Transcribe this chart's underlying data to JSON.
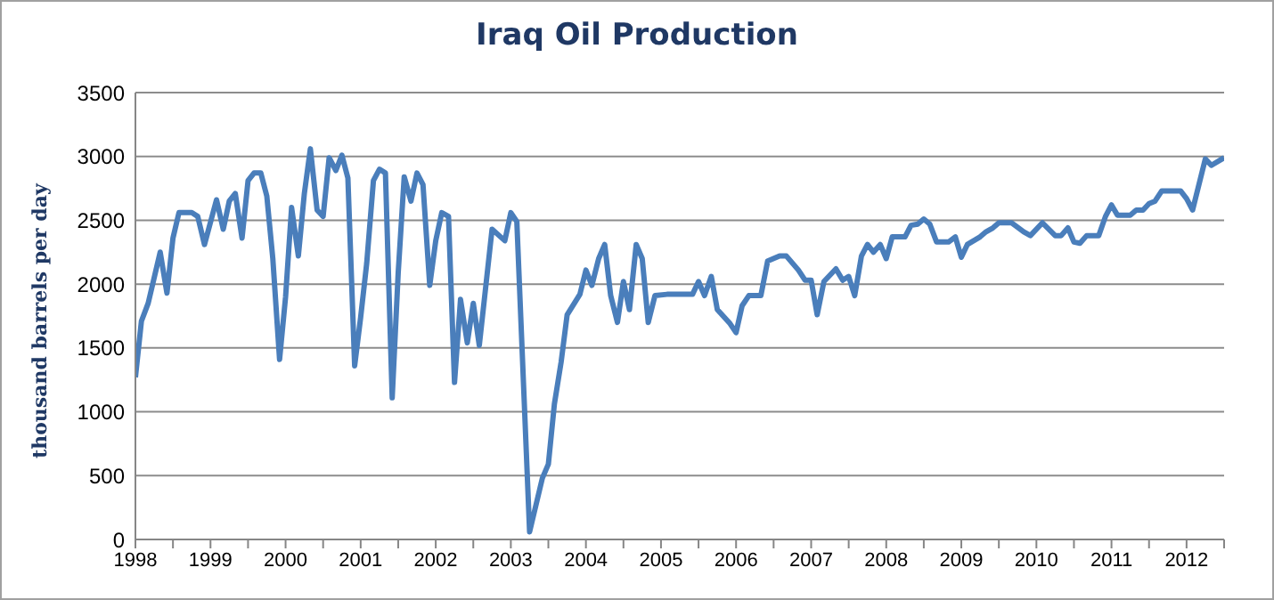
{
  "chart_data": {
    "type": "line",
    "title": "Iraq Oil Production",
    "ylabel": "thousand barrels per day",
    "x": [
      1998,
      1998.08,
      1998.17,
      1998.33,
      1998.42,
      1998.5,
      1998.58,
      1998.75,
      1998.83,
      1998.92,
      1999.08,
      1999.17,
      1999.25,
      1999.33,
      1999.42,
      1999.5,
      1999.58,
      1999.67,
      1999.75,
      1999.83,
      1999.92,
      2000,
      2000.08,
      2000.17,
      2000.25,
      2000.33,
      2000.42,
      2000.5,
      2000.58,
      2000.67,
      2000.75,
      2000.83,
      2000.92,
      2001,
      2001.08,
      2001.17,
      2001.25,
      2001.33,
      2001.42,
      2001.5,
      2001.58,
      2001.67,
      2001.75,
      2001.83,
      2001.92,
      2002,
      2002.08,
      2002.17,
      2002.25,
      2002.33,
      2002.42,
      2002.5,
      2002.58,
      2002.75,
      2002.92,
      2003,
      2003.08,
      2003.25,
      2003.42,
      2003.5,
      2003.58,
      2003.67,
      2003.75,
      2003.92,
      2004,
      2004.08,
      2004.17,
      2004.25,
      2004.33,
      2004.42,
      2004.5,
      2004.58,
      2004.67,
      2004.75,
      2004.83,
      2004.92,
      2005.08,
      2005.42,
      2005.5,
      2005.58,
      2005.67,
      2005.75,
      2005.92,
      2006,
      2006.08,
      2006.17,
      2006.33,
      2006.42,
      2006.58,
      2006.67,
      2006.83,
      2006.92,
      2007,
      2007.08,
      2007.17,
      2007.33,
      2007.42,
      2007.5,
      2007.58,
      2007.67,
      2007.75,
      2007.83,
      2007.92,
      2008,
      2008.08,
      2008.25,
      2008.33,
      2008.42,
      2008.5,
      2008.58,
      2008.67,
      2008.83,
      2008.92,
      2009,
      2009.08,
      2009.25,
      2009.33,
      2009.42,
      2009.5,
      2009.67,
      2009.83,
      2009.92,
      2010.08,
      2010.25,
      2010.33,
      2010.42,
      2010.5,
      2010.58,
      2010.67,
      2010.83,
      2010.92,
      2011,
      2011.08,
      2011.25,
      2011.33,
      2011.42,
      2011.5,
      2011.58,
      2011.67,
      2011.92,
      2012,
      2012.08,
      2012.25,
      2012.33,
      2012.5
    ],
    "series": [
      {
        "color": "#4a7ebb",
        "values": [
          1270,
          1710,
          1850,
          2250,
          1930,
          2360,
          2560,
          2560,
          2530,
          2310,
          2660,
          2430,
          2650,
          2710,
          2360,
          2810,
          2870,
          2870,
          2690,
          2200,
          1410,
          1900,
          2600,
          2220,
          2710,
          3060,
          2580,
          2530,
          2990,
          2890,
          3010,
          2830,
          1360,
          1740,
          2160,
          2810,
          2900,
          2870,
          1110,
          2090,
          2840,
          2650,
          2870,
          2780,
          1990,
          2340,
          2560,
          2530,
          1230,
          1880,
          1540,
          1850,
          1520,
          2430,
          2340,
          2560,
          2490,
          60,
          480,
          590,
          1060,
          1390,
          1760,
          1920,
          2110,
          1990,
          2200,
          2310,
          1910,
          1700,
          2020,
          1800,
          2310,
          2200,
          1700,
          1910,
          1920,
          1920,
          2020,
          1910,
          2060,
          1800,
          1690,
          1620,
          1830,
          1910,
          1910,
          2180,
          2220,
          2220,
          2110,
          2030,
          2030,
          1760,
          2020,
          2120,
          2030,
          2060,
          1910,
          2220,
          2310,
          2250,
          2310,
          2200,
          2370,
          2370,
          2460,
          2470,
          2510,
          2470,
          2330,
          2330,
          2370,
          2210,
          2310,
          2370,
          2410,
          2440,
          2480,
          2480,
          2410,
          2380,
          2480,
          2380,
          2380,
          2440,
          2330,
          2320,
          2380,
          2380,
          2530,
          2620,
          2540,
          2540,
          2580,
          2580,
          2630,
          2650,
          2730,
          2730,
          2670,
          2580,
          2980,
          2930,
          2990
        ]
      }
    ],
    "xlim": [
      1998,
      2012.5
    ],
    "xticks": [
      1998,
      {
        "value": 1998.5,
        "label": null
      },
      1999,
      {
        "value": 1999.5,
        "label": null
      },
      2000,
      {
        "value": 2000.5,
        "label": null
      },
      2001,
      {
        "value": 2001.5,
        "label": null
      },
      2002,
      {
        "value": 2002.5,
        "label": null
      },
      2003,
      {
        "value": 2003.5,
        "label": null
      },
      2004,
      {
        "value": 2004.5,
        "label": null
      },
      2005,
      {
        "value": 2005.5,
        "label": null
      },
      2006,
      {
        "value": 2006.5,
        "label": null
      },
      2007,
      {
        "value": 2007.5,
        "label": null
      },
      2008,
      {
        "value": 2008.5,
        "label": null
      },
      2009,
      {
        "value": 2009.5,
        "label": null
      },
      2010,
      {
        "value": 2010.5,
        "label": null
      },
      2011,
      {
        "value": 2011.5,
        "label": null
      },
      2012,
      {
        "value": 2012.5,
        "label": null
      }
    ],
    "ylim": [
      0,
      3500
    ],
    "yticks": [
      0,
      500,
      1000,
      1500,
      2000,
      2500,
      3000,
      3500
    ],
    "grid": "y",
    "legend": false,
    "marker": "none",
    "line_style": "solid"
  }
}
